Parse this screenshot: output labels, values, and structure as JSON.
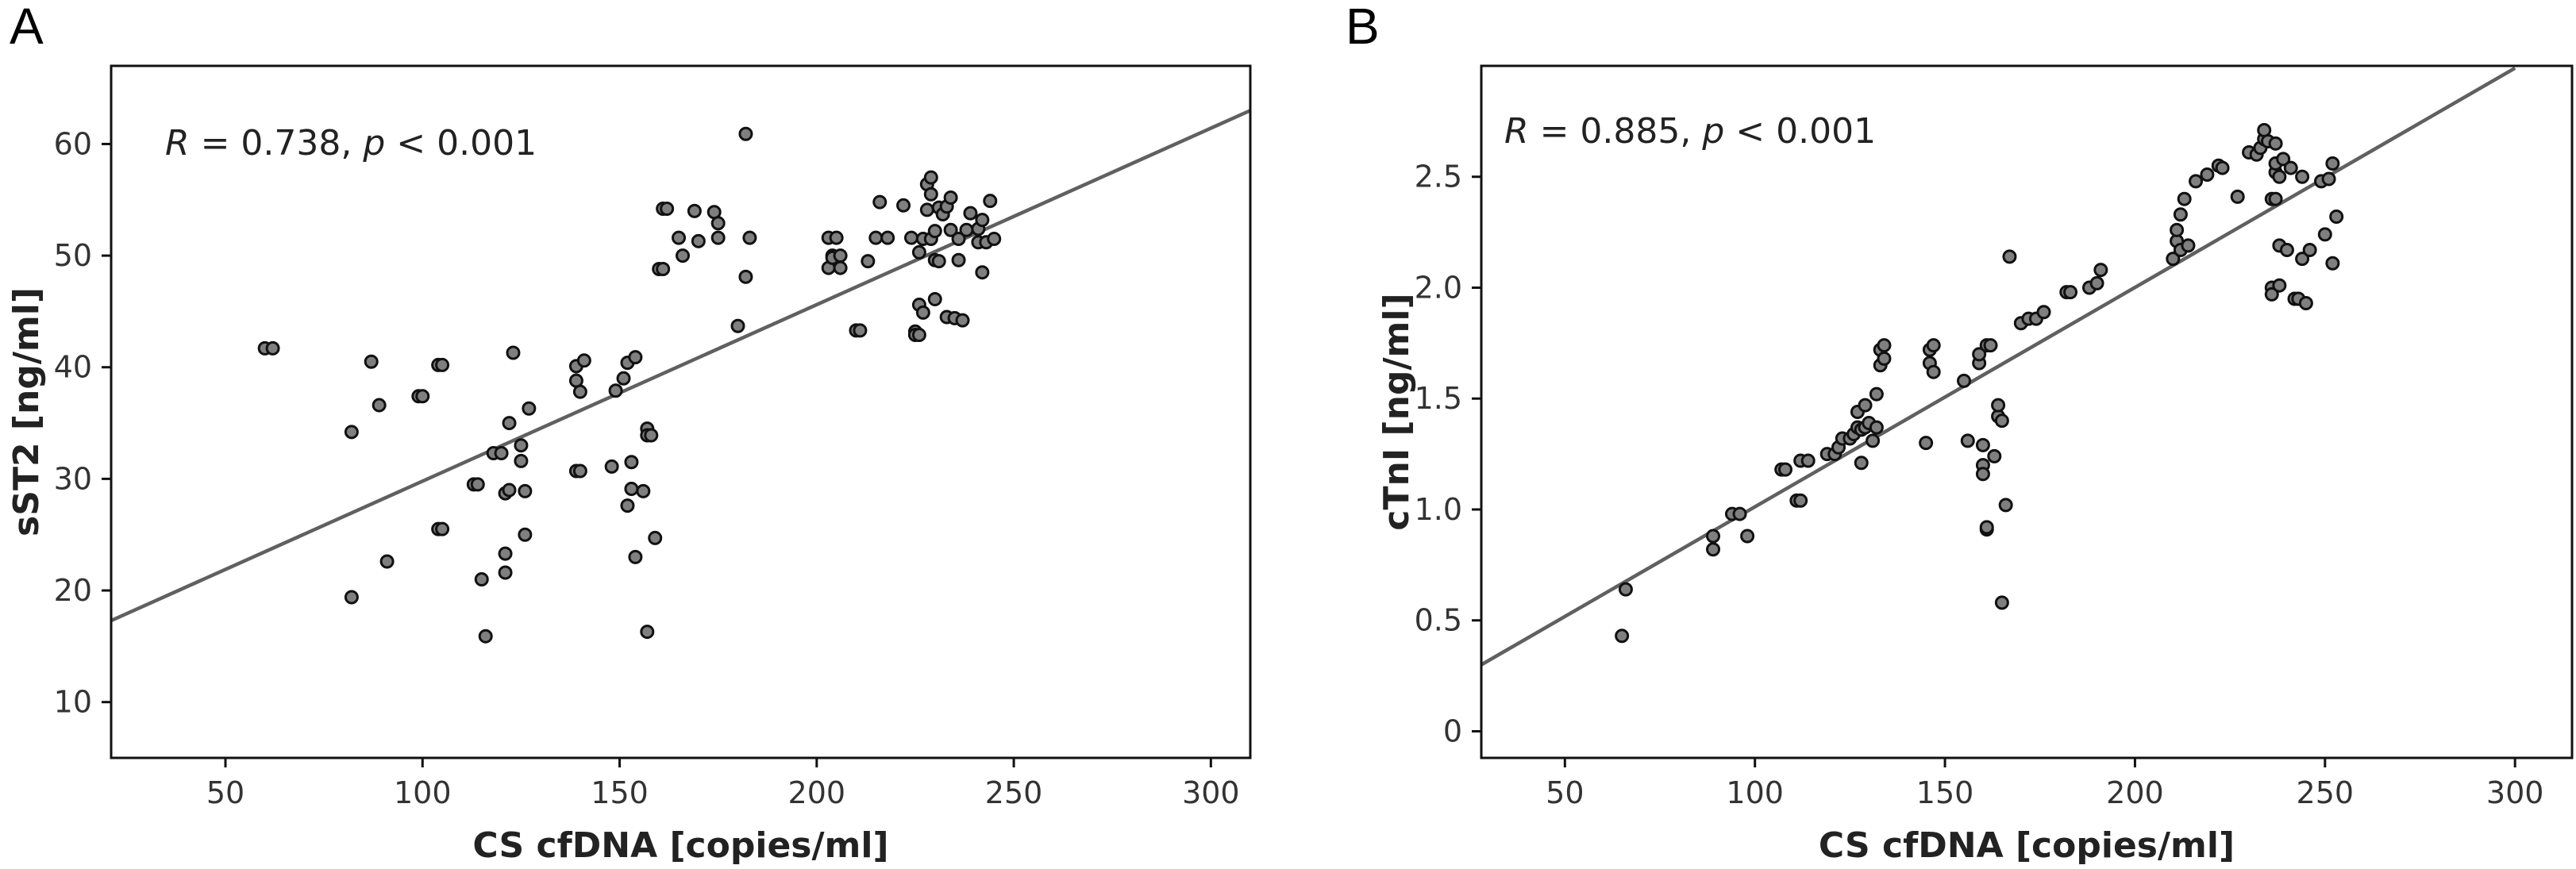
{
  "chart_data": [
    {
      "panel": "A",
      "type": "scatter",
      "title": "",
      "xlabel": "CS cfDNA [copies/ml]",
      "ylabel": "sST2 [ng/ml]",
      "annotation": {
        "r_symbol": "R",
        "r_text": " = 0.738, ",
        "p_symbol": "p",
        "p_text": " < 0.001"
      },
      "xlim": [
        21,
        310
      ],
      "ylim": [
        5,
        67
      ],
      "xticks": [
        50,
        100,
        150,
        200,
        250,
        300
      ],
      "yticks": [
        10,
        20,
        30,
        40,
        50,
        60
      ],
      "fit_line": {
        "x": [
          21,
          310
        ],
        "y": [
          17.3,
          63.0
        ]
      },
      "points": [
        [
          60,
          41.7
        ],
        [
          62,
          41.7
        ],
        [
          82,
          34.2
        ],
        [
          82,
          19.4
        ],
        [
          87,
          40.5
        ],
        [
          89,
          36.6
        ],
        [
          91,
          22.6
        ],
        [
          99,
          37.4
        ],
        [
          100,
          37.4
        ],
        [
          104,
          40.2
        ],
        [
          105,
          40.2
        ],
        [
          104,
          25.5
        ],
        [
          105,
          25.5
        ],
        [
          113,
          29.5
        ],
        [
          114,
          29.5
        ],
        [
          115,
          21.0
        ],
        [
          116,
          15.9
        ],
        [
          118,
          32.3
        ],
        [
          120,
          32.3
        ],
        [
          121,
          28.7
        ],
        [
          122,
          29.0
        ],
        [
          121,
          23.3
        ],
        [
          121,
          21.6
        ],
        [
          122,
          35.0
        ],
        [
          123,
          41.3
        ],
        [
          125,
          31.6
        ],
        [
          125,
          33.0
        ],
        [
          126,
          28.9
        ],
        [
          126,
          25.0
        ],
        [
          127,
          36.3
        ],
        [
          139,
          30.7
        ],
        [
          140,
          30.7
        ],
        [
          139,
          40.1
        ],
        [
          139,
          38.8
        ],
        [
          140,
          37.8
        ],
        [
          141,
          40.6
        ],
        [
          148,
          31.1
        ],
        [
          149,
          37.9
        ],
        [
          151,
          39.0
        ],
        [
          152,
          40.4
        ],
        [
          154,
          40.9
        ],
        [
          152,
          27.6
        ],
        [
          153,
          31.5
        ],
        [
          153,
          29.1
        ],
        [
          154,
          23.0
        ],
        [
          156,
          28.9
        ],
        [
          157,
          34.5
        ],
        [
          157,
          33.9
        ],
        [
          158,
          33.9
        ],
        [
          157,
          16.3
        ],
        [
          159,
          24.7
        ],
        [
          160,
          48.8
        ],
        [
          161,
          48.8
        ],
        [
          161,
          54.2
        ],
        [
          162,
          54.2
        ],
        [
          165,
          51.6
        ],
        [
          166,
          50.0
        ],
        [
          169,
          54.0
        ],
        [
          170,
          51.3
        ],
        [
          174,
          53.9
        ],
        [
          175,
          51.6
        ],
        [
          175,
          52.9
        ],
        [
          180,
          43.7
        ],
        [
          182,
          60.9
        ],
        [
          182,
          48.1
        ],
        [
          183,
          51.6
        ],
        [
          203,
          51.6
        ],
        [
          204,
          50.0
        ],
        [
          203,
          48.9
        ],
        [
          204,
          49.8
        ],
        [
          205,
          51.6
        ],
        [
          206,
          48.9
        ],
        [
          206,
          50.0
        ],
        [
          210,
          43.3
        ],
        [
          211,
          43.3
        ],
        [
          213,
          49.5
        ],
        [
          215,
          51.6
        ],
        [
          216,
          54.8
        ],
        [
          218,
          51.6
        ],
        [
          222,
          54.5
        ],
        [
          224,
          51.6
        ],
        [
          226,
          50.3
        ],
        [
          225,
          43.2
        ],
        [
          225,
          42.9
        ],
        [
          226,
          42.9
        ],
        [
          226,
          45.6
        ],
        [
          227,
          44.9
        ],
        [
          227,
          51.5
        ],
        [
          228,
          54.1
        ],
        [
          228,
          56.4
        ],
        [
          229,
          57.0
        ],
        [
          229,
          55.5
        ],
        [
          229,
          51.5
        ],
        [
          230,
          52.2
        ],
        [
          230,
          49.6
        ],
        [
          230,
          46.1
        ],
        [
          231,
          54.3
        ],
        [
          231,
          49.5
        ],
        [
          232,
          53.7
        ],
        [
          233,
          54.4
        ],
        [
          234,
          55.2
        ],
        [
          234,
          52.3
        ],
        [
          233,
          44.5
        ],
        [
          235,
          44.4
        ],
        [
          236,
          51.5
        ],
        [
          236,
          49.6
        ],
        [
          237,
          44.2
        ],
        [
          238,
          52.3
        ],
        [
          239,
          53.8
        ],
        [
          241,
          51.2
        ],
        [
          241,
          52.4
        ],
        [
          242,
          53.2
        ],
        [
          242,
          48.5
        ],
        [
          243,
          51.2
        ],
        [
          244,
          54.9
        ],
        [
          245,
          51.5
        ]
      ]
    },
    {
      "panel": "B",
      "type": "scatter",
      "title": "",
      "xlabel": "CS cfDNA [copies/ml]",
      "ylabel": "cTnI [ng/ml]",
      "annotation": {
        "r_symbol": "R",
        "r_text": " = 0.885, ",
        "p_symbol": "p",
        "p_text": " < 0.001"
      },
      "xlim": [
        28,
        315
      ],
      "ylim": [
        -0.12,
        3.0
      ],
      "xticks": [
        50,
        100,
        150,
        200,
        250,
        300
      ],
      "yticks": [
        0,
        0.5,
        1.0,
        1.5,
        2.0,
        2.5
      ],
      "ytick_labels": [
        "0",
        "0.5",
        "1.0",
        "1.5",
        "2.0",
        "2.5"
      ],
      "fit_line": {
        "x": [
          28,
          300
        ],
        "y": [
          0.3,
          2.99
        ]
      },
      "points": [
        [
          65,
          0.43
        ],
        [
          66,
          0.64
        ],
        [
          89,
          0.82
        ],
        [
          89,
          0.88
        ],
        [
          94,
          0.98
        ],
        [
          96,
          0.98
        ],
        [
          98,
          0.88
        ],
        [
          107,
          1.18
        ],
        [
          108,
          1.18
        ],
        [
          111,
          1.04
        ],
        [
          112,
          1.04
        ],
        [
          112,
          1.22
        ],
        [
          114,
          1.22
        ],
        [
          119,
          1.25
        ],
        [
          121,
          1.25
        ],
        [
          122,
          1.28
        ],
        [
          123,
          1.32
        ],
        [
          125,
          1.32
        ],
        [
          126,
          1.34
        ],
        [
          127,
          1.37
        ],
        [
          127,
          1.44
        ],
        [
          128,
          1.21
        ],
        [
          128,
          1.36
        ],
        [
          129,
          1.37
        ],
        [
          129,
          1.47
        ],
        [
          130,
          1.39
        ],
        [
          131,
          1.31
        ],
        [
          132,
          1.52
        ],
        [
          132,
          1.37
        ],
        [
          133,
          1.65
        ],
        [
          133,
          1.72
        ],
        [
          134,
          1.68
        ],
        [
          134,
          1.74
        ],
        [
          145,
          1.3
        ],
        [
          146,
          1.66
        ],
        [
          146,
          1.72
        ],
        [
          147,
          1.74
        ],
        [
          147,
          1.62
        ],
        [
          155,
          1.58
        ],
        [
          156,
          1.31
        ],
        [
          159,
          1.66
        ],
        [
          159,
          1.7
        ],
        [
          160,
          1.2
        ],
        [
          160,
          1.16
        ],
        [
          160,
          1.29
        ],
        [
          161,
          0.91
        ],
        [
          161,
          0.92
        ],
        [
          161,
          1.74
        ],
        [
          162,
          1.74
        ],
        [
          163,
          1.24
        ],
        [
          164,
          1.42
        ],
        [
          164,
          1.47
        ],
        [
          165,
          0.58
        ],
        [
          165,
          1.4
        ],
        [
          166,
          1.02
        ],
        [
          167,
          2.14
        ],
        [
          170,
          1.84
        ],
        [
          172,
          1.86
        ],
        [
          174,
          1.86
        ],
        [
          176,
          1.89
        ],
        [
          182,
          1.98
        ],
        [
          183,
          1.98
        ],
        [
          188,
          2.0
        ],
        [
          190,
          2.02
        ],
        [
          191,
          2.08
        ],
        [
          210,
          2.13
        ],
        [
          211,
          2.21
        ],
        [
          211,
          2.26
        ],
        [
          212,
          2.33
        ],
        [
          212,
          2.17
        ],
        [
          213,
          2.4
        ],
        [
          214,
          2.19
        ],
        [
          216,
          2.48
        ],
        [
          219,
          2.51
        ],
        [
          222,
          2.55
        ],
        [
          223,
          2.54
        ],
        [
          227,
          2.41
        ],
        [
          230,
          2.61
        ],
        [
          232,
          2.6
        ],
        [
          233,
          2.63
        ],
        [
          234,
          2.67
        ],
        [
          234,
          2.71
        ],
        [
          236,
          2.0
        ],
        [
          235,
          2.66
        ],
        [
          236,
          1.97
        ],
        [
          236,
          2.4
        ],
        [
          237,
          2.4
        ],
        [
          237,
          2.52
        ],
        [
          237,
          2.56
        ],
        [
          237,
          2.65
        ],
        [
          238,
          2.01
        ],
        [
          238,
          2.19
        ],
        [
          238,
          2.5
        ],
        [
          239,
          2.58
        ],
        [
          240,
          2.17
        ],
        [
          241,
          2.54
        ],
        [
          242,
          1.95
        ],
        [
          243,
          1.95
        ],
        [
          244,
          2.13
        ],
        [
          244,
          2.5
        ],
        [
          245,
          1.93
        ],
        [
          246,
          2.17
        ],
        [
          249,
          2.48
        ],
        [
          250,
          2.24
        ],
        [
          251,
          2.49
        ],
        [
          252,
          2.11
        ],
        [
          252,
          2.56
        ],
        [
          253,
          2.32
        ]
      ]
    }
  ]
}
